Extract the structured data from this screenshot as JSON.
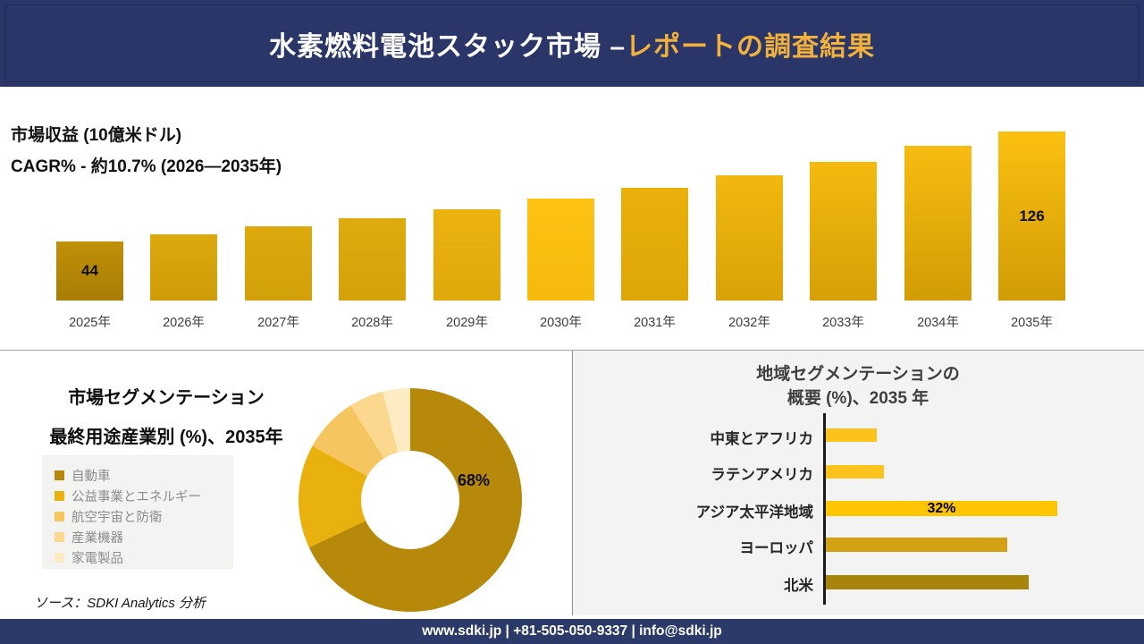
{
  "header": {
    "title_white": "水素燃料電池スタック市場 –",
    "title_gold": "レポートの調査結果",
    "bg_color": "#2b3668",
    "gold_color": "#f2b13c"
  },
  "chart_data": [
    {
      "id": "market-revenue",
      "type": "bar",
      "title": "市場収益 (10億米ドル)",
      "subtitle": "CAGR% - 約10.7% (2026―2035年)",
      "categories": [
        "2025年",
        "2026年",
        "2027年",
        "2028年",
        "2029年",
        "2030年",
        "2031年",
        "2032年",
        "2033年",
        "2034年",
        "2035年"
      ],
      "values": [
        44,
        49,
        55,
        61,
        68,
        76,
        84,
        93,
        103,
        115,
        126
      ],
      "value_labels": {
        "0": "44",
        "10": "126"
      },
      "ylim": [
        0,
        126
      ],
      "grid": false,
      "bar_colors": [
        [
          "#bf9008",
          "#a87d03"
        ],
        [
          "#dca90f",
          "#cf9c08"
        ],
        [
          "#dda90e",
          "#d2a009"
        ],
        [
          "#dfaa0d",
          "#d5a209"
        ],
        [
          "#ecb30f",
          "#dfa90b"
        ],
        [
          "#fdc214",
          "#f5ba0d"
        ],
        [
          "#eab00b",
          "#dda607"
        ],
        [
          "#f2b80e",
          "#d9a307"
        ],
        [
          "#f4ba0e",
          "#d6a006"
        ],
        [
          "#f7bc10",
          "#d29d05"
        ],
        [
          "#fbc011",
          "#d29c05"
        ]
      ]
    },
    {
      "id": "end-use-segmentation",
      "type": "pie",
      "title": "市場セグメンテーション",
      "subtitle": "最終用途産業別 (%)、2035年",
      "labels": [
        "自動車",
        "公益事業とエネルギー",
        "航空宇宙と防衛",
        "産業機器",
        "家電製品"
      ],
      "values": [
        68,
        15,
        8,
        5,
        4
      ],
      "colors": [
        "#b6890b",
        "#e9b10d",
        "#f5c55f",
        "#fbd88e",
        "#fdebc4"
      ],
      "data_label": "68%",
      "donut_hole_ratio": 0.44,
      "legend_position": "left"
    },
    {
      "id": "regional-segmentation",
      "type": "bar-horizontal",
      "title": "地域セグメンテーションの",
      "title_line2": "概要 (%)、2035 年",
      "categories": [
        "中東とアフリカ",
        "ラテンアメリカ",
        "アジア太平洋地域",
        "ヨーロッパ",
        "北米"
      ],
      "values": [
        7,
        8,
        32,
        25,
        28
      ],
      "colors": [
        "#fcc31d",
        "#fcc31d",
        "#fdc502",
        "#d2a012",
        "#a9840b"
      ],
      "value_labels": {
        "2": "32%"
      },
      "xmax": 40,
      "grid": false
    }
  ],
  "source": {
    "label": "ソース：SDKI Analytics 分析"
  },
  "footer": {
    "text": "www.sdki.jp | +81-505-050-9337 | info@sdki.jp"
  }
}
